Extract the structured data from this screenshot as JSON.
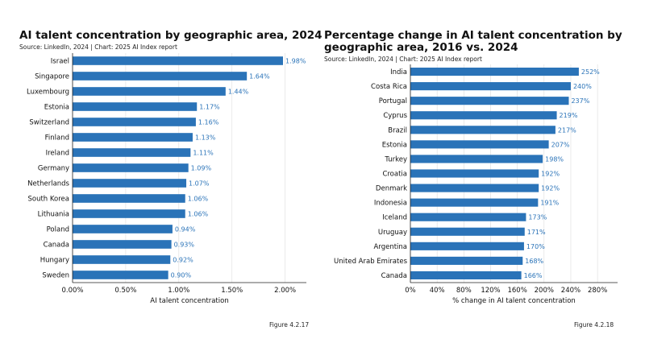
{
  "colors": {
    "bar": "#2a73b8",
    "label": "#2a73b8",
    "axis": "#222222",
    "grid": "#dddddd"
  },
  "charts": [
    {
      "title": "AI talent concentration by geographic area, 2024",
      "source": "Source: LinkedIn, 2024 | Chart: 2025 AI Index report",
      "figure": "Figure 4.2.17"
    },
    {
      "title_line1": "Percentage change in AI talent concentration by",
      "title_line2": "geographic area, 2016 vs. 2024",
      "source": "Source: LinkedIn, 2024 | Chart: 2025 AI Index report",
      "figure": "Figure 4.2.18"
    }
  ],
  "chart_data": [
    {
      "type": "bar",
      "orientation": "horizontal",
      "title": "AI talent concentration by geographic area, 2024",
      "xlabel": "AI talent concentration",
      "ylabel": "",
      "xlim": [
        0,
        2.2
      ],
      "xticks": [
        0,
        0.5,
        1.0,
        1.5,
        2.0
      ],
      "xtick_labels": [
        "0.00%",
        "0.50%",
        "1.00%",
        "1.50%",
        "2.00%"
      ],
      "categories": [
        "Israel",
        "Singapore",
        "Luxembourg",
        "Estonia",
        "Switzerland",
        "Finland",
        "Ireland",
        "Germany",
        "Netherlands",
        "South Korea",
        "Lithuania",
        "Poland",
        "Canada",
        "Hungary",
        "Sweden"
      ],
      "values": [
        1.98,
        1.64,
        1.44,
        1.17,
        1.16,
        1.13,
        1.11,
        1.09,
        1.07,
        1.06,
        1.06,
        0.94,
        0.93,
        0.92,
        0.9
      ],
      "value_labels": [
        "1.98%",
        "1.64%",
        "1.44%",
        "1.17%",
        "1.16%",
        "1.13%",
        "1.11%",
        "1.09%",
        "1.07%",
        "1.06%",
        "1.06%",
        "0.94%",
        "0.93%",
        "0.92%",
        "0.90%"
      ],
      "grid": true
    },
    {
      "type": "bar",
      "orientation": "horizontal",
      "title": "Percentage change in AI talent concentration by geographic area, 2016 vs. 2024",
      "xlabel": "% change in AI talent concentration",
      "ylabel": "",
      "xlim": [
        0,
        310
      ],
      "xticks": [
        0,
        40,
        80,
        120,
        160,
        200,
        240,
        280
      ],
      "xtick_labels": [
        "0%",
        "40%",
        "80%",
        "120%",
        "160%",
        "200%",
        "240%",
        "280%"
      ],
      "categories": [
        "India",
        "Costa Rica",
        "Portugal",
        "Cyprus",
        "Brazil",
        "Estonia",
        "Turkey",
        "Croatia",
        "Denmark",
        "Indonesia",
        "Iceland",
        "Uruguay",
        "Argentina",
        "United Arab Emirates",
        "Canada"
      ],
      "values": [
        252,
        240,
        237,
        219,
        217,
        207,
        198,
        192,
        192,
        191,
        173,
        171,
        170,
        168,
        166
      ],
      "value_labels": [
        "252%",
        "240%",
        "237%",
        "219%",
        "217%",
        "207%",
        "198%",
        "192%",
        "192%",
        "191%",
        "173%",
        "171%",
        "170%",
        "168%",
        "166%"
      ],
      "grid": true
    }
  ]
}
